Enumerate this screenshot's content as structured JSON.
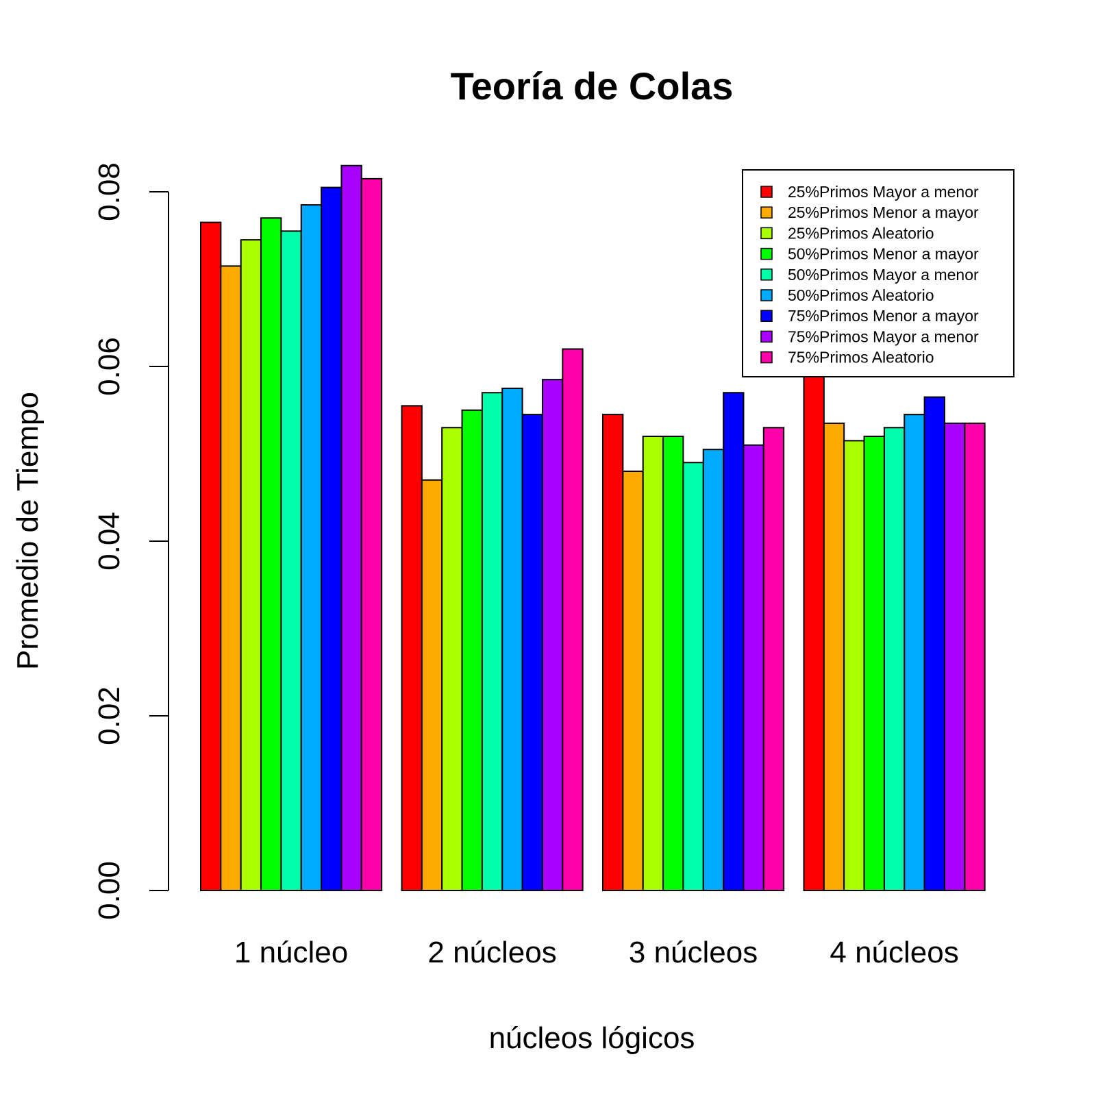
{
  "chart_data": {
    "type": "bar",
    "title": "Teoría de Colas",
    "xlabel": "núcleos lógicos",
    "ylabel": "Promedio de Tiempo",
    "categories": [
      "1 núcleo",
      "2 núcleos",
      "3 núcleos",
      "4 núcleos"
    ],
    "ylim": [
      0,
      0.08
    ],
    "yticks": [
      "0.00",
      "0.02",
      "0.04",
      "0.06",
      "0.08"
    ],
    "grid": false,
    "legend_position": "top-right",
    "series": [
      {
        "name": "25%Primos Mayor a menor",
        "color": "#FF0000",
        "values": [
          0.0765,
          0.0555,
          0.0545,
          0.0595
        ]
      },
      {
        "name": "25%Primos Menor a mayor",
        "color": "#FFAA00",
        "values": [
          0.0715,
          0.047,
          0.048,
          0.0535
        ]
      },
      {
        "name": "25%Primos Aleatorio",
        "color": "#AAFF00",
        "values": [
          0.0745,
          0.053,
          0.052,
          0.0515
        ]
      },
      {
        "name": "50%Primos Menor a mayor",
        "color": "#00FF00",
        "values": [
          0.077,
          0.055,
          0.052,
          0.052
        ]
      },
      {
        "name": "50%Primos Mayor a menor",
        "color": "#00FFAA",
        "values": [
          0.0755,
          0.057,
          0.049,
          0.053
        ]
      },
      {
        "name": "50%Primos Aleatorio",
        "color": "#00AAFF",
        "values": [
          0.0785,
          0.0575,
          0.0505,
          0.0545
        ]
      },
      {
        "name": "75%Primos Menor a mayor",
        "color": "#0000FF",
        "values": [
          0.0805,
          0.0545,
          0.057,
          0.0565
        ]
      },
      {
        "name": "75%Primos Mayor a menor",
        "color": "#AA00FF",
        "values": [
          0.083,
          0.0585,
          0.051,
          0.0535
        ]
      },
      {
        "name": "75%Primos Aleatorio",
        "color": "#FF00AA",
        "values": [
          0.0815,
          0.062,
          0.053,
          0.0535
        ]
      }
    ]
  }
}
